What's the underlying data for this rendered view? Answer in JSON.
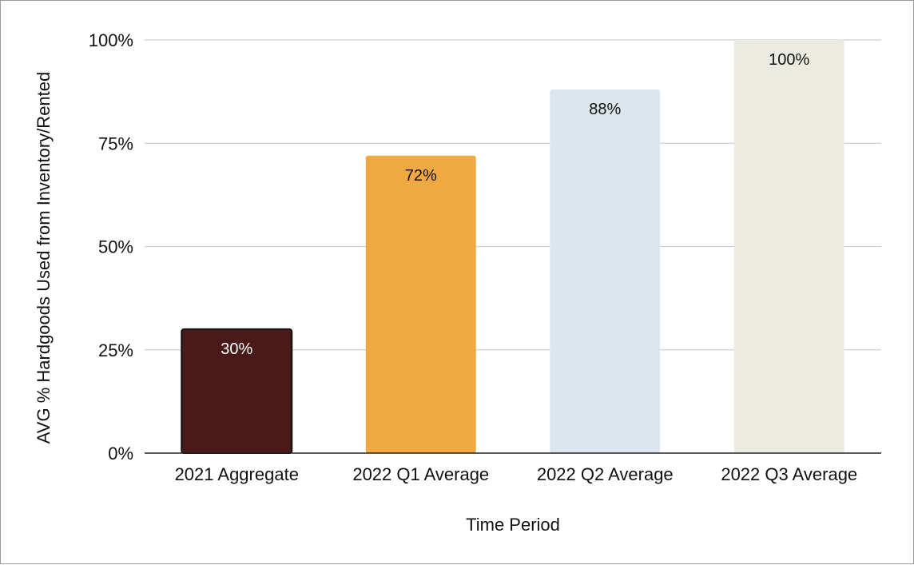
{
  "chart_data": {
    "type": "bar",
    "title": "",
    "xlabel": "Time Period",
    "ylabel": "AVG % Hardgoods Used from Inventory/Rented",
    "categories": [
      "2021 Aggregate",
      "2022 Q1 Average",
      "2022 Q2 Average",
      "2022 Q3 Average"
    ],
    "values": [
      30,
      72,
      88,
      100
    ],
    "data_labels": [
      "30%",
      "72%",
      "88%",
      "100%"
    ],
    "bar_colors": [
      "#4a1a18",
      "#f0a843",
      "#dde6ee",
      "#ecebe2"
    ],
    "label_colors": [
      "#ffffff",
      "#111111",
      "#111111",
      "#111111"
    ],
    "ylim": [
      0,
      100
    ],
    "yticks": [
      0,
      25,
      50,
      75,
      100
    ],
    "ytick_labels": [
      "0%",
      "25%",
      "50%",
      "75%",
      "100%"
    ],
    "grid": true,
    "legend": "none"
  }
}
